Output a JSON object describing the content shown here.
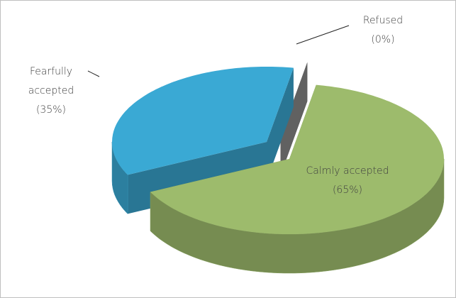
{
  "chart_data": {
    "type": "pie3d",
    "categories": [
      "Calmly accepted",
      "Fearfully accepted",
      "Refused"
    ],
    "values": [
      65,
      35,
      0
    ],
    "value_labels": [
      "(65%)",
      "(35%)",
      "(0%)"
    ],
    "colors": [
      "#9dbb6c",
      "#3aa9d4",
      "#8a8a8a"
    ]
  }
}
